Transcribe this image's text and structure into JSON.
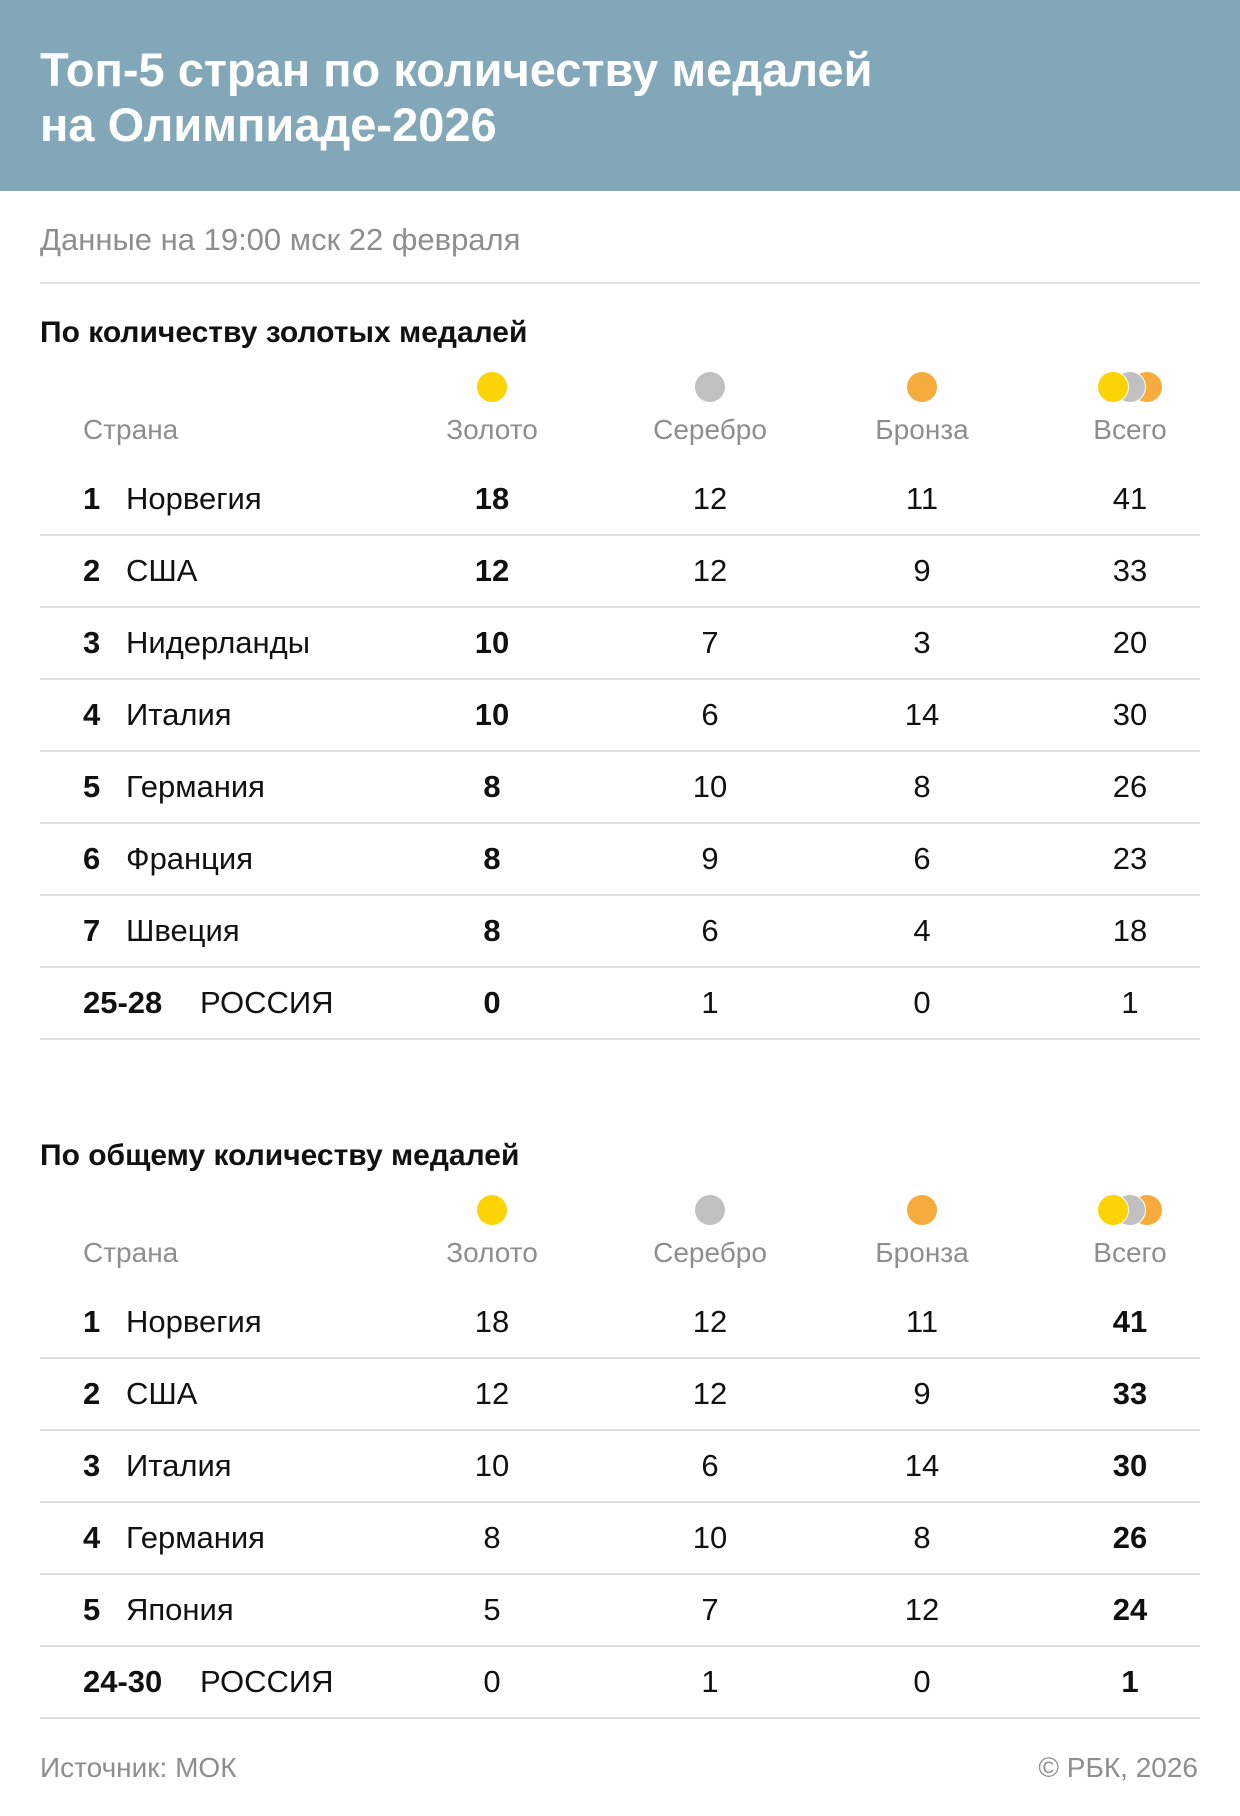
{
  "header": {
    "title_line1": "Топ-5 стран по количеству медалей",
    "title_line2": "на Олимпиаде-2026"
  },
  "subtitle": "Данные на 19:00 мск 22 февраля",
  "columns": {
    "country": "Страна",
    "gold": "Золото",
    "silver": "Серебро",
    "bronze": "Бронза",
    "total": "Всего"
  },
  "colors": {
    "header_bg": "#81a7b9",
    "gold": "#fcd405",
    "silver": "#c0c0c0",
    "bronze": "#f5ac3c"
  },
  "chart_data": [
    {
      "type": "table",
      "title": "По количеству золотых медалей",
      "columns": [
        "Страна",
        "Золото",
        "Серебро",
        "Бронза",
        "Всего"
      ],
      "bold_column": "gold",
      "rows": [
        {
          "rank": "1",
          "country": "Норвегия",
          "gold": "18",
          "silver": "12",
          "bronze": "11",
          "total": "41"
        },
        {
          "rank": "2",
          "country": "США",
          "gold": "12",
          "silver": "12",
          "bronze": "9",
          "total": "33"
        },
        {
          "rank": "3",
          "country": "Нидерланды",
          "gold": "10",
          "silver": "7",
          "bronze": "3",
          "total": "20"
        },
        {
          "rank": "4",
          "country": "Италия",
          "gold": "10",
          "silver": "6",
          "bronze": "14",
          "total": "30"
        },
        {
          "rank": "5",
          "country": "Германия",
          "gold": "8",
          "silver": "10",
          "bronze": "8",
          "total": "26"
        },
        {
          "rank": "6",
          "country": "Франция",
          "gold": "8",
          "silver": "9",
          "bronze": "6",
          "total": "23"
        },
        {
          "rank": "7",
          "country": "Швеция",
          "gold": "8",
          "silver": "6",
          "bronze": "4",
          "total": "18"
        },
        {
          "rank": "25-28",
          "country": "РОССИЯ",
          "gold": "0",
          "silver": "1",
          "bronze": "0",
          "total": "1"
        }
      ]
    },
    {
      "type": "table",
      "title": "По общему количеству медалей",
      "columns": [
        "Страна",
        "Золото",
        "Серебро",
        "Бронза",
        "Всего"
      ],
      "bold_column": "total",
      "rows": [
        {
          "rank": "1",
          "country": "Норвегия",
          "gold": "18",
          "silver": "12",
          "bronze": "11",
          "total": "41"
        },
        {
          "rank": "2",
          "country": "США",
          "gold": "12",
          "silver": "12",
          "bronze": "9",
          "total": "33"
        },
        {
          "rank": "3",
          "country": "Италия",
          "gold": "10",
          "silver": "6",
          "bronze": "14",
          "total": "30"
        },
        {
          "rank": "4",
          "country": "Германия",
          "gold": "8",
          "silver": "10",
          "bronze": "8",
          "total": "26"
        },
        {
          "rank": "5",
          "country": "Япония",
          "gold": "5",
          "silver": "7",
          "bronze": "12",
          "total": "24"
        },
        {
          "rank": "24-30",
          "country": "РОССИЯ",
          "gold": "0",
          "silver": "1",
          "bronze": "0",
          "total": "1"
        }
      ]
    }
  ],
  "footer": {
    "source": "Источник: МОК",
    "copyright": "© РБК, 2026"
  }
}
